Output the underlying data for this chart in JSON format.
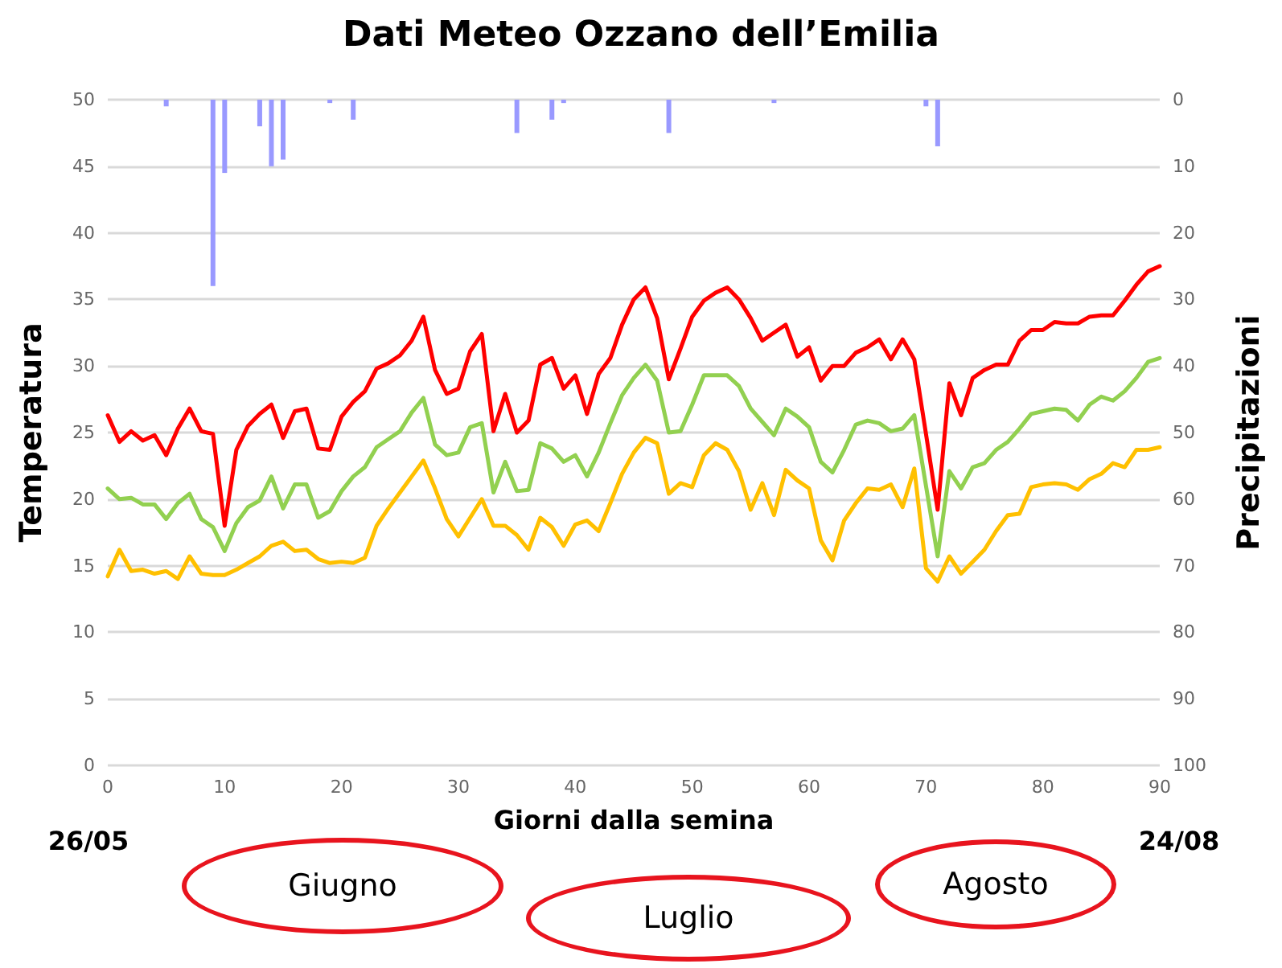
{
  "chart_data": {
    "type": "line",
    "title": "Dati Meteo Ozzano dell’Emilia",
    "xlabel": "Giorni dalla semina",
    "ylabel": "Temperatura",
    "y2label": "Precipitazioni",
    "x": [
      0,
      1,
      2,
      3,
      4,
      5,
      6,
      7,
      8,
      9,
      10,
      11,
      12,
      13,
      14,
      15,
      16,
      17,
      18,
      19,
      20,
      21,
      22,
      23,
      24,
      25,
      26,
      27,
      28,
      29,
      30,
      31,
      32,
      33,
      34,
      35,
      36,
      37,
      38,
      39,
      40,
      41,
      42,
      43,
      44,
      45,
      46,
      47,
      48,
      49,
      50,
      51,
      52,
      53,
      54,
      55,
      56,
      57,
      58,
      59,
      60,
      61,
      62,
      63,
      64,
      65,
      66,
      67,
      68,
      69,
      70,
      71,
      72,
      73,
      74,
      75,
      76,
      77,
      78,
      79,
      80,
      81,
      82,
      83,
      84,
      85,
      86,
      87,
      88,
      89,
      90
    ],
    "series": [
      {
        "type": "bar",
        "axis": "y2",
        "color": "#9999ff",
        "values": [
          0,
          0,
          0,
          0,
          0,
          1,
          0,
          0,
          0,
          28,
          11,
          0,
          0,
          4,
          10,
          9,
          0,
          0,
          0,
          0.5,
          0,
          3,
          0,
          0,
          0,
          0,
          0,
          0,
          0,
          0,
          0,
          0,
          0,
          0,
          0,
          5,
          0,
          0,
          3,
          0.5,
          0,
          0,
          0,
          0,
          0,
          0,
          0,
          0,
          5,
          0,
          0,
          0,
          0,
          0,
          0,
          0,
          0,
          0.5,
          0,
          0,
          0,
          0,
          0,
          0,
          0,
          0,
          0,
          0,
          0,
          0,
          1,
          7,
          0,
          0,
          0,
          0,
          0,
          0,
          0,
          0,
          0,
          0,
          0,
          0,
          0,
          0,
          0,
          0,
          0,
          0,
          0
        ]
      },
      {
        "color": "#ff0000",
        "values": [
          26.3,
          24.3,
          25.1,
          24.4,
          24.8,
          23.3,
          25.3,
          26.8,
          25.1,
          24.9,
          18.0,
          23.7,
          25.5,
          26.4,
          27.1,
          24.6,
          26.6,
          26.8,
          23.8,
          23.7,
          26.2,
          27.3,
          28.1,
          29.8,
          30.2,
          30.8,
          31.9,
          33.7,
          29.7,
          27.9,
          28.3,
          31.1,
          32.4,
          25.1,
          27.9,
          25.0,
          25.9,
          30.1,
          30.6,
          28.3,
          29.3,
          26.4,
          29.4,
          30.6,
          33.1,
          35.0,
          35.9,
          33.6,
          29.0,
          31.3,
          33.7,
          34.9,
          35.5,
          35.9,
          35.0,
          33.6,
          31.9,
          32.5,
          33.1,
          30.7,
          31.4,
          28.9,
          30.0,
          30.0,
          31.0,
          31.4,
          32.0,
          30.5,
          32.0,
          30.5,
          24.9,
          19.2,
          28.7,
          26.3,
          29.1,
          29.7,
          30.1,
          30.1,
          31.9,
          32.7,
          32.7,
          33.3,
          33.2,
          33.2,
          33.7,
          33.8,
          33.8,
          34.9,
          36.1,
          37.1,
          37.5
        ]
      },
      {
        "color": "#92d050",
        "values": [
          20.8,
          20.0,
          20.1,
          19.6,
          19.6,
          18.5,
          19.7,
          20.4,
          18.5,
          17.9,
          16.1,
          18.2,
          19.4,
          19.9,
          21.7,
          19.3,
          21.1,
          21.1,
          18.6,
          19.1,
          20.6,
          21.7,
          22.4,
          23.9,
          24.5,
          25.1,
          26.5,
          27.6,
          24.1,
          23.3,
          23.5,
          25.4,
          25.7,
          20.5,
          22.8,
          20.6,
          20.7,
          24.2,
          23.8,
          22.8,
          23.3,
          21.7,
          23.5,
          25.7,
          27.8,
          29.1,
          30.1,
          28.9,
          25.0,
          25.1,
          27.1,
          29.3,
          29.3,
          29.3,
          28.5,
          26.8,
          25.8,
          24.8,
          26.8,
          26.2,
          25.4,
          22.8,
          22.0,
          23.7,
          25.6,
          25.9,
          25.7,
          25.1,
          25.3,
          26.3,
          21.0,
          15.7,
          22.1,
          20.8,
          22.4,
          22.7,
          23.7,
          24.3,
          25.3,
          26.4,
          26.6,
          26.8,
          26.7,
          25.9,
          27.1,
          27.7,
          27.4,
          28.1,
          29.1,
          30.3,
          30.6
        ]
      },
      {
        "color": "#ffc000",
        "values": [
          14.2,
          16.2,
          14.6,
          14.7,
          14.4,
          14.6,
          14.0,
          15.7,
          14.4,
          14.3,
          14.3,
          14.7,
          15.2,
          15.7,
          16.5,
          16.8,
          16.1,
          16.2,
          15.5,
          15.2,
          15.3,
          15.2,
          15.6,
          18.0,
          19.3,
          20.5,
          21.7,
          22.9,
          20.8,
          18.5,
          17.2,
          18.6,
          20.0,
          18.0,
          18.0,
          17.3,
          16.2,
          18.6,
          17.9,
          16.5,
          18.1,
          18.4,
          17.6,
          19.7,
          21.9,
          23.5,
          24.6,
          24.2,
          20.4,
          21.2,
          20.9,
          23.3,
          24.2,
          23.7,
          22.1,
          19.2,
          21.2,
          18.8,
          22.2,
          21.4,
          20.8,
          16.9,
          15.4,
          18.4,
          19.7,
          20.8,
          20.7,
          21.1,
          19.4,
          22.3,
          14.8,
          13.8,
          15.7,
          14.4,
          15.3,
          16.2,
          17.6,
          18.8,
          18.9,
          20.9,
          21.1,
          21.2,
          21.1,
          20.7,
          21.5,
          21.9,
          22.7,
          22.4,
          23.7,
          23.7,
          23.9
        ]
      }
    ],
    "xlim": [
      0,
      90
    ],
    "xticks": [
      0,
      10,
      20,
      30,
      40,
      50,
      60,
      70,
      80,
      90
    ],
    "ylim": [
      0,
      50
    ],
    "yticks": [
      0,
      5,
      10,
      15,
      20,
      25,
      30,
      35,
      40,
      45,
      50
    ],
    "y2lim": [
      100,
      0
    ],
    "y2ticks": [
      0,
      10,
      20,
      30,
      40,
      50,
      60,
      70,
      80,
      90,
      100
    ],
    "grid": "y",
    "marker": "none",
    "line_style": "solid",
    "annotations": [
      "26/05",
      "24/08",
      "Giugno",
      "Luglio",
      "Agosto"
    ]
  }
}
